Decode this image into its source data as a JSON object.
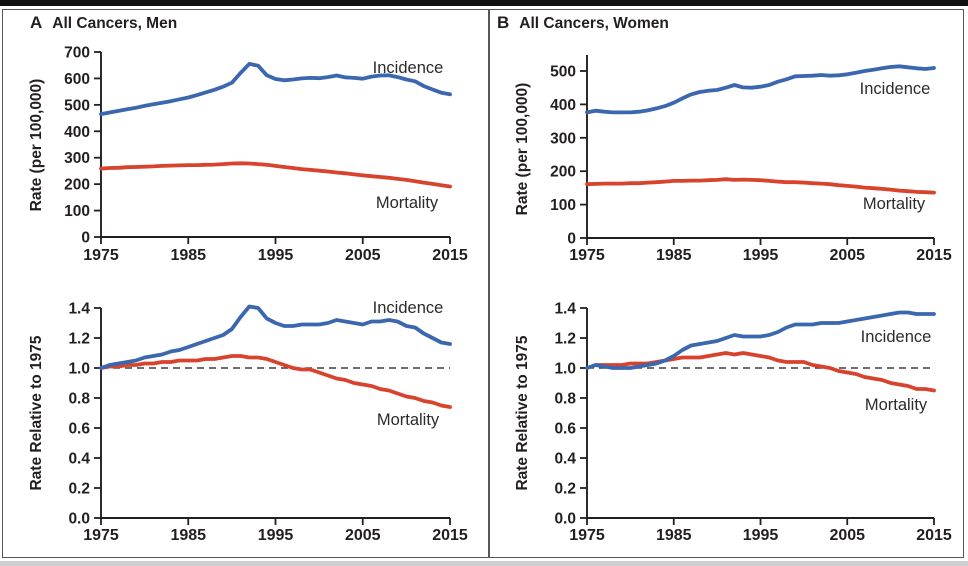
{
  "figure": {
    "panels": [
      {
        "letter": "A",
        "title": "All Cancers, Men"
      },
      {
        "letter": "B",
        "title": "All Cancers, Women"
      }
    ]
  },
  "colors": {
    "incidence_blue": "#3a67ae",
    "mortality_red": "#d8432e",
    "axis_black": "#231f20",
    "frame_gray": "#55565a",
    "top_rule_black": "#101010",
    "bottom_strip_gray": "#cfcfd1",
    "refline_gray": "#3f3f3f"
  },
  "chart_data": [
    {
      "id": "men-rate",
      "type": "line",
      "panel": "A",
      "title": "All Cancers, Men",
      "xlabel": "",
      "ylabel": "Rate (per 100,000)",
      "x_range": [
        1975,
        2015
      ],
      "x_step": 1,
      "x_ticks": [
        "1975",
        "1985",
        "1995",
        "2005",
        "2015"
      ],
      "ylim": [
        0,
        700
      ],
      "y_ticks": [
        0,
        100,
        200,
        300,
        400,
        500,
        600,
        700
      ],
      "y_tick_labels": [
        "0",
        "100",
        "200",
        "300",
        "400",
        "500",
        "600",
        "700"
      ],
      "grid": false,
      "legend": "inline-labels",
      "series": [
        {
          "name": "Incidence",
          "color": "incidence_blue",
          "values": [
            465,
            471,
            477,
            483,
            489,
            496,
            502,
            508,
            514,
            521,
            528,
            537,
            547,
            557,
            569,
            584,
            621,
            655,
            648,
            612,
            598,
            593,
            596,
            600,
            602,
            601,
            605,
            611,
            604,
            602,
            599,
            607,
            611,
            612,
            605,
            596,
            589,
            571,
            558,
            546,
            540
          ]
        },
        {
          "name": "Mortality",
          "color": "mortality_red",
          "values": [
            259,
            261,
            262,
            264,
            265,
            266,
            267,
            269,
            270,
            271,
            272,
            272,
            273,
            274,
            276,
            278,
            279,
            278,
            276,
            273,
            269,
            265,
            261,
            257,
            254,
            251,
            248,
            244,
            241,
            237,
            233,
            230,
            227,
            224,
            220,
            216,
            211,
            206,
            201,
            196,
            191
          ]
        }
      ]
    },
    {
      "id": "women-rate",
      "type": "line",
      "panel": "B",
      "title": "All Cancers, Women",
      "xlabel": "",
      "ylabel": "Rate (per 100,000)",
      "x_range": [
        1975,
        2015
      ],
      "x_step": 1,
      "x_ticks": [
        "1975",
        "1985",
        "1995",
        "2005",
        "2015"
      ],
      "ylim": [
        0,
        550
      ],
      "y_ticks": [
        0,
        100,
        200,
        300,
        400,
        500
      ],
      "y_tick_labels": [
        "0",
        "100",
        "200",
        "300",
        "400",
        "500"
      ],
      "grid": false,
      "legend": "inline-labels",
      "series": [
        {
          "name": "Incidence",
          "color": "incidence_blue",
          "values": [
            376,
            381,
            378,
            376,
            376,
            376,
            378,
            382,
            388,
            395,
            405,
            418,
            430,
            437,
            441,
            443,
            450,
            458,
            451,
            450,
            453,
            458,
            468,
            475,
            484,
            485,
            486,
            488,
            486,
            487,
            490,
            495,
            500,
            504,
            508,
            512,
            514,
            511,
            508,
            506,
            509
          ]
        },
        {
          "name": "Mortality",
          "color": "mortality_red",
          "values": [
            161,
            162,
            163,
            163,
            163,
            164,
            164,
            166,
            167,
            169,
            171,
            171,
            172,
            172,
            173,
            174,
            176,
            174,
            175,
            174,
            173,
            171,
            169,
            167,
            167,
            166,
            164,
            163,
            161,
            158,
            156,
            154,
            151,
            149,
            147,
            145,
            142,
            140,
            138,
            137,
            136
          ]
        }
      ]
    },
    {
      "id": "men-relative",
      "type": "line",
      "panel": "A",
      "title": "All Cancers, Men — Rate Relative to 1975",
      "xlabel": "",
      "ylabel": "Rate Relative to 1975",
      "x_range": [
        1975,
        2015
      ],
      "x_step": 1,
      "x_ticks": [
        "1975",
        "1985",
        "1995",
        "2005",
        "2015"
      ],
      "ylim": [
        0.0,
        1.4
      ],
      "y_ticks": [
        0.0,
        0.2,
        0.4,
        0.6,
        0.8,
        1.0,
        1.2,
        1.4
      ],
      "y_tick_labels": [
        "0.0",
        "0.2",
        "0.4",
        "0.6",
        "0.8",
        "1.0",
        "1.2",
        "1.4"
      ],
      "reference_line": 1.0,
      "grid": false,
      "legend": "inline-labels",
      "series": [
        {
          "name": "Incidence",
          "color": "incidence_blue",
          "values": [
            1.0,
            1.02,
            1.03,
            1.04,
            1.05,
            1.07,
            1.08,
            1.09,
            1.11,
            1.12,
            1.14,
            1.16,
            1.18,
            1.2,
            1.22,
            1.26,
            1.34,
            1.41,
            1.4,
            1.33,
            1.3,
            1.28,
            1.28,
            1.29,
            1.29,
            1.29,
            1.3,
            1.32,
            1.31,
            1.3,
            1.29,
            1.31,
            1.31,
            1.32,
            1.31,
            1.28,
            1.27,
            1.23,
            1.2,
            1.17,
            1.16
          ]
        },
        {
          "name": "Mortality",
          "color": "mortality_red",
          "values": [
            1.0,
            1.01,
            1.01,
            1.02,
            1.02,
            1.03,
            1.03,
            1.04,
            1.04,
            1.05,
            1.05,
            1.05,
            1.06,
            1.06,
            1.07,
            1.08,
            1.08,
            1.07,
            1.07,
            1.06,
            1.04,
            1.02,
            1.0,
            0.99,
            0.99,
            0.97,
            0.95,
            0.93,
            0.92,
            0.9,
            0.89,
            0.88,
            0.86,
            0.85,
            0.83,
            0.81,
            0.8,
            0.78,
            0.77,
            0.75,
            0.74
          ]
        }
      ]
    },
    {
      "id": "women-relative",
      "type": "line",
      "panel": "B",
      "title": "All Cancers, Women — Rate Relative to 1975",
      "xlabel": "",
      "ylabel": "Rate Relative to 1975",
      "x_range": [
        1975,
        2015
      ],
      "x_step": 1,
      "x_ticks": [
        "1975",
        "1985",
        "1995",
        "2005",
        "2015"
      ],
      "ylim": [
        0.0,
        1.4
      ],
      "y_ticks": [
        0.0,
        0.2,
        0.4,
        0.6,
        0.8,
        1.0,
        1.2,
        1.4
      ],
      "y_tick_labels": [
        "0.0",
        "0.2",
        "0.4",
        "0.6",
        "0.8",
        "1.0",
        "1.2",
        "1.4"
      ],
      "reference_line": 1.0,
      "grid": false,
      "legend": "inline-labels",
      "series": [
        {
          "name": "Incidence",
          "color": "incidence_blue",
          "values": [
            1.0,
            1.02,
            1.01,
            1.0,
            1.0,
            1.0,
            1.01,
            1.02,
            1.03,
            1.05,
            1.08,
            1.12,
            1.15,
            1.16,
            1.17,
            1.18,
            1.2,
            1.22,
            1.21,
            1.21,
            1.21,
            1.22,
            1.24,
            1.27,
            1.29,
            1.29,
            1.29,
            1.3,
            1.3,
            1.3,
            1.31,
            1.32,
            1.33,
            1.34,
            1.35,
            1.36,
            1.37,
            1.37,
            1.36,
            1.36,
            1.36
          ]
        },
        {
          "name": "Mortality",
          "color": "mortality_red",
          "values": [
            1.0,
            1.02,
            1.02,
            1.02,
            1.02,
            1.03,
            1.03,
            1.03,
            1.04,
            1.05,
            1.06,
            1.07,
            1.07,
            1.07,
            1.08,
            1.09,
            1.1,
            1.09,
            1.1,
            1.09,
            1.08,
            1.07,
            1.05,
            1.04,
            1.04,
            1.04,
            1.02,
            1.01,
            1.0,
            0.98,
            0.97,
            0.96,
            0.94,
            0.93,
            0.92,
            0.9,
            0.89,
            0.88,
            0.86,
            0.86,
            0.85
          ]
        }
      ]
    }
  ]
}
